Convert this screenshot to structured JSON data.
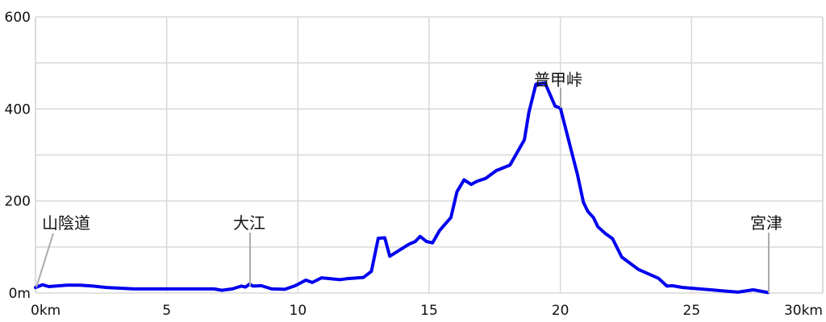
{
  "chart_data": {
    "type": "line",
    "title": "",
    "xlabel": "",
    "ylabel": "",
    "xlim": [
      0,
      30
    ],
    "ylim": [
      0,
      600
    ],
    "grid": true,
    "line_color": "#0000ee",
    "grid_color": "#d8d8d8",
    "x_ticks": [
      {
        "value": 0,
        "label": "0km"
      },
      {
        "value": 5,
        "label": "5"
      },
      {
        "value": 10,
        "label": "10"
      },
      {
        "value": 15,
        "label": "15"
      },
      {
        "value": 20,
        "label": "20"
      },
      {
        "value": 25,
        "label": "25"
      },
      {
        "value": 30,
        "label": "30km"
      }
    ],
    "y_ticks": [
      {
        "value": 0,
        "label": "0m"
      },
      {
        "value": 200,
        "label": "200"
      },
      {
        "value": 400,
        "label": "400"
      },
      {
        "value": 600,
        "label": "600"
      }
    ],
    "series": [
      {
        "x": [
          0,
          0.27,
          0.5,
          1.2,
          1.7,
          2.2,
          2.7,
          3.75,
          5,
          6.8,
          7.1,
          7.5,
          7.85,
          8.0,
          8.15,
          8.3,
          8.6,
          9.0,
          9.5,
          9.9,
          10.3,
          10.55,
          10.9,
          11.6,
          11.85,
          12.5,
          12.8,
          13.06,
          13.31,
          13.5,
          14.23,
          14.47,
          14.66,
          14.9,
          15.13,
          15.4,
          15.83,
          16.06,
          16.33,
          16.6,
          16.83,
          17.15,
          17.56,
          18.08,
          18.63,
          18.8,
          19.07,
          19.42,
          19.8,
          20.0,
          20.65,
          20.88,
          21.05,
          21.26,
          21.43,
          21.7,
          21.99,
          22.34,
          22.98,
          23.74,
          24.06,
          24.26,
          24.66,
          26.77,
          27.35,
          27.91
        ],
        "y": [
          12,
          18,
          14,
          17,
          17,
          15,
          12,
          9,
          9,
          9,
          6,
          9,
          15,
          13,
          19,
          15,
          16,
          9,
          8,
          16,
          28,
          23,
          33,
          29,
          31,
          34,
          47,
          119,
          120,
          80,
          106,
          112,
          123,
          112,
          109,
          136,
          164,
          220,
          246,
          236,
          243,
          249,
          266,
          278,
          333,
          392,
          454,
          456,
          406,
          402,
          258,
          197,
          177,
          164,
          144,
          130,
          118,
          78,
          51,
          32,
          15,
          16,
          12,
          2,
          7,
          1
        ]
      }
    ],
    "annotations": [
      {
        "label": "山陰道",
        "x": 0
      },
      {
        "label": "大江",
        "x": 8.15
      },
      {
        "label": "普甲峠",
        "x": 20.0
      },
      {
        "label": "宮津",
        "x": 27.91
      }
    ]
  }
}
